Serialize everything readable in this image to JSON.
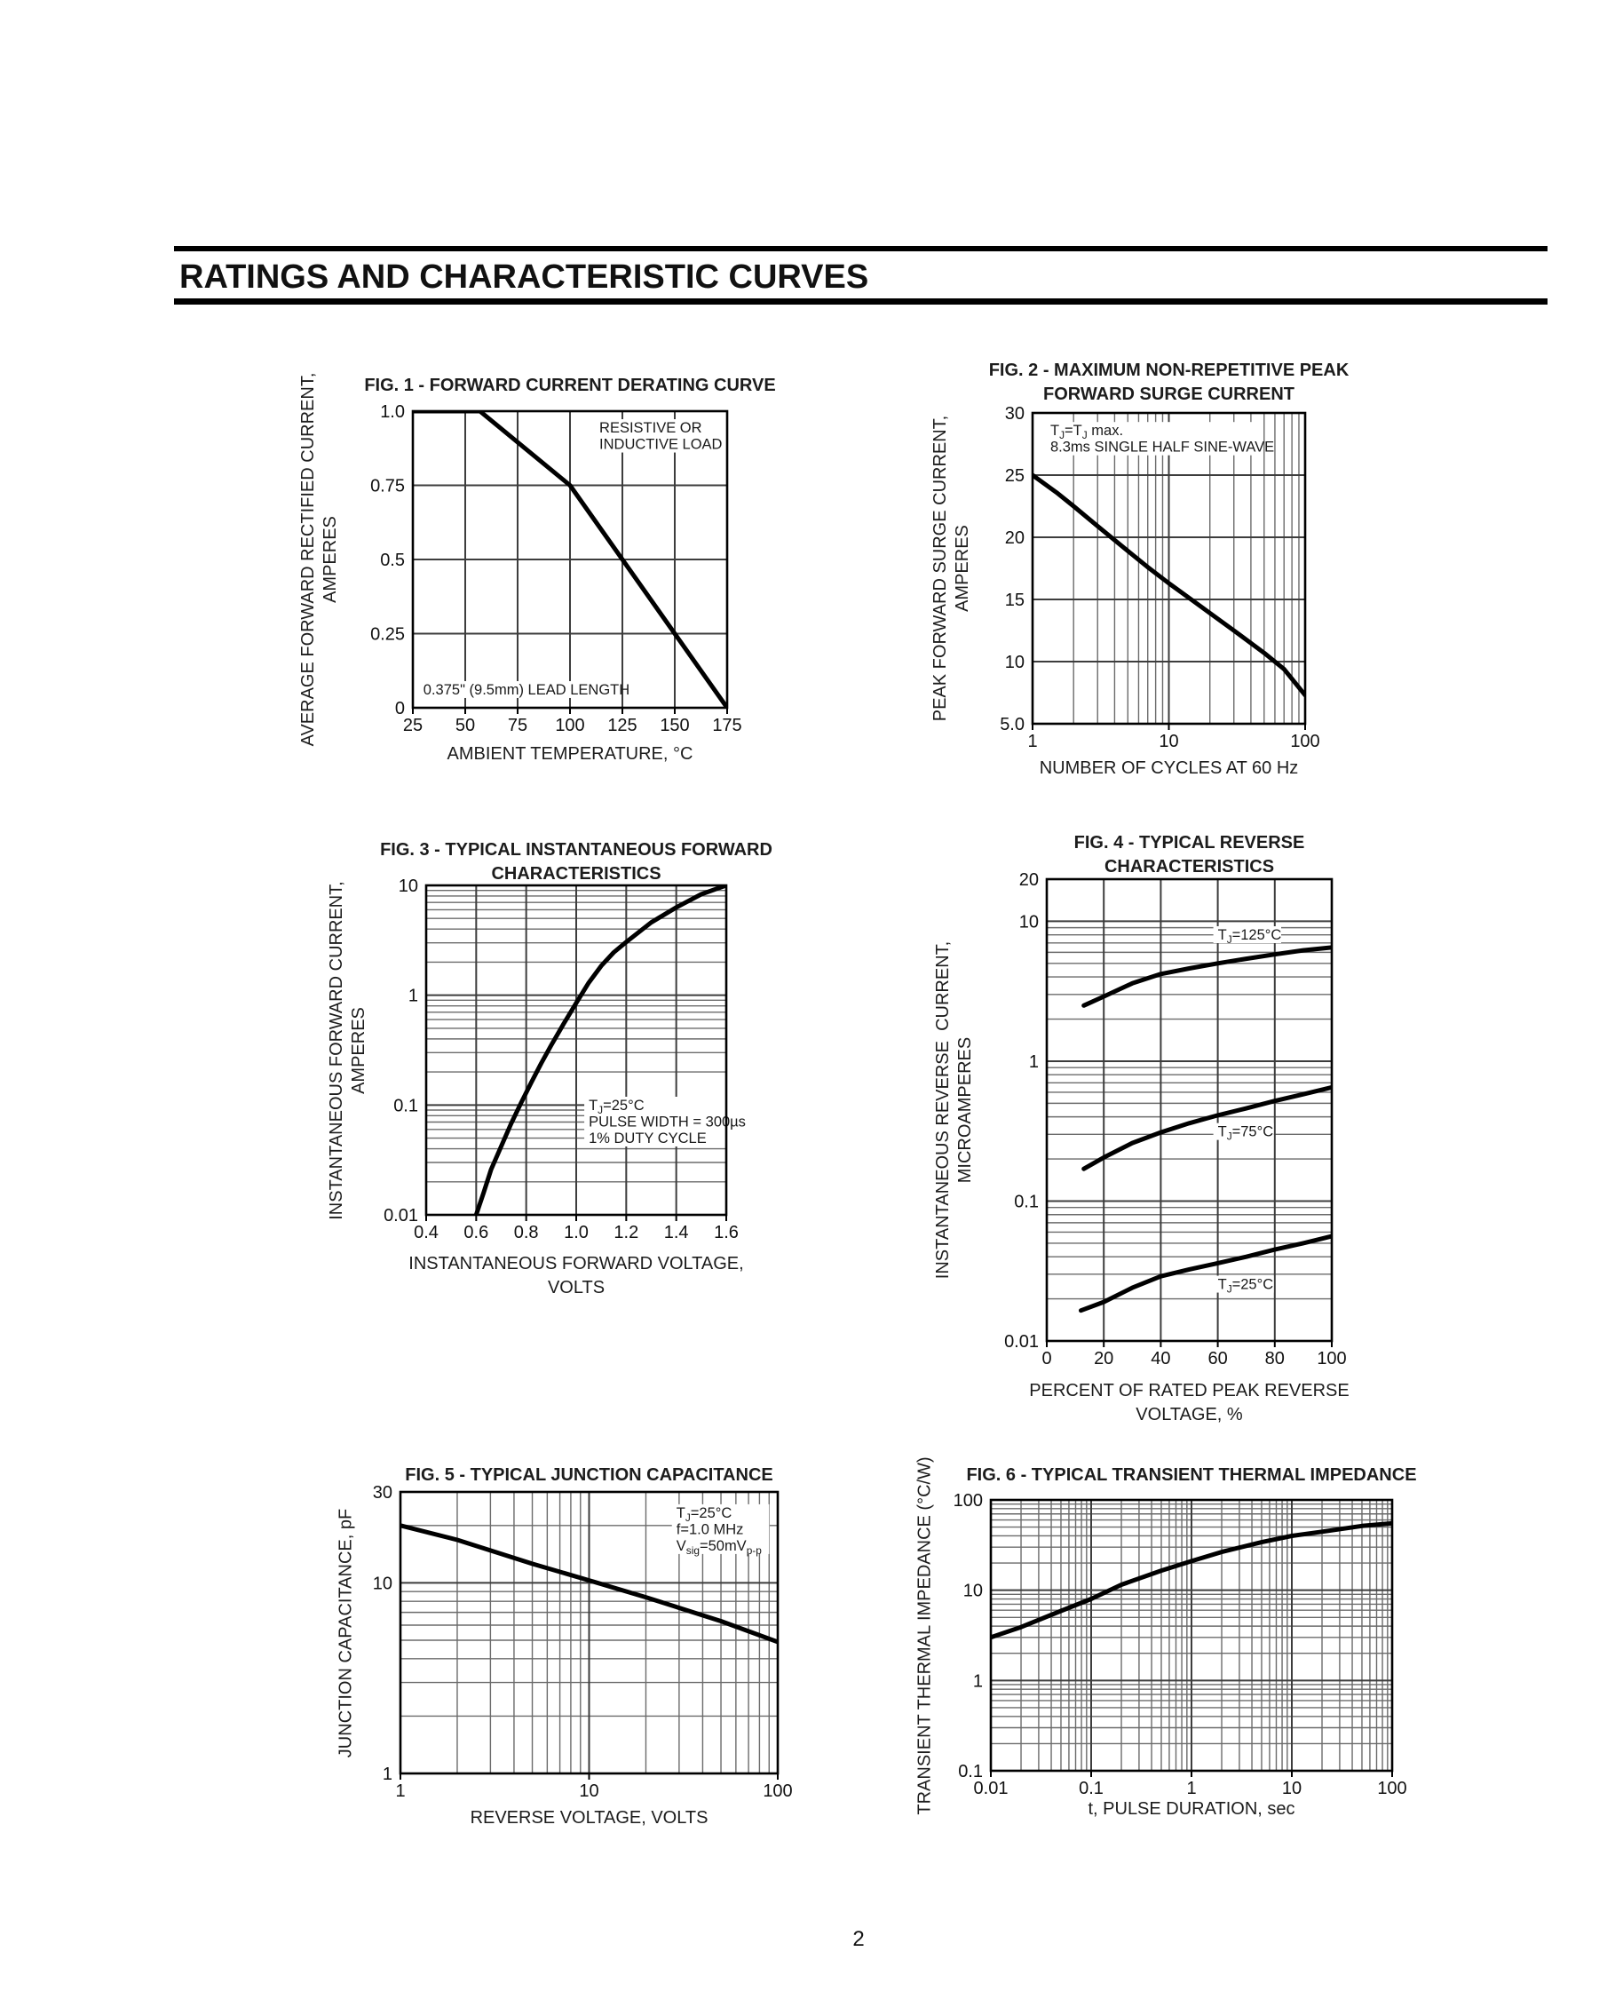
{
  "page": {
    "header_title": "RATINGS AND CHARACTERISTIC CURVES",
    "page_number": "2"
  },
  "chart_data": [
    {
      "id": "fig1",
      "type": "line",
      "title1": "FIG. 1 - FORWARD CURRENT DERATING CURVE",
      "xlabel1": "AMBIENT TEMPERATURE, °C",
      "ylabel1": "AVERAGE FORWARD RECTIFIED CURRENT,",
      "ylabel2": "AMPERES",
      "xscale": "linear",
      "yscale": "linear",
      "xlim": [
        25,
        175
      ],
      "ylim": [
        0,
        1
      ],
      "xticks": [
        {
          "v": 25,
          "label": "25"
        },
        {
          "v": 50,
          "label": "50"
        },
        {
          "v": 75,
          "label": "75"
        },
        {
          "v": 100,
          "label": "100"
        },
        {
          "v": 125,
          "label": "125"
        },
        {
          "v": 150,
          "label": "150"
        },
        {
          "v": 175,
          "label": "175"
        }
      ],
      "yticks": [
        {
          "v": 1,
          "label": "1.0"
        },
        {
          "v": 0.75,
          "label": "0.75"
        },
        {
          "v": 0.5,
          "label": "0.5"
        },
        {
          "v": 0.25,
          "label": "0.25"
        },
        {
          "v": 0,
          "label": "0"
        }
      ],
      "series": [
        {
          "name": "forward-current-derating",
          "points": [
            [
              25,
              1
            ],
            [
              57,
              1
            ],
            [
              100,
              0.75
            ],
            [
              175,
              0
            ]
          ]
        }
      ],
      "annotations": [
        {
          "x": 114,
          "y": 0.928,
          "lines": [
            "RESISTIVE OR",
            "INDUCTIVE LOAD"
          ]
        },
        {
          "x": 30,
          "y": 0.045,
          "lines": [
            "0.375\" (9.5mm) LEAD LENGTH"
          ]
        }
      ]
    },
    {
      "id": "fig2",
      "type": "line",
      "title1": "FIG. 2 - MAXIMUM NON-REPETITIVE PEAK",
      "title2": "FORWARD SURGE CURRENT",
      "xlabel1": "NUMBER OF CYCLES AT 60 Hz",
      "ylabel1": "PEAK FORWARD SURGE CURRENT,",
      "ylabel2": "AMPERES",
      "xscale": "log",
      "yscale": "linear",
      "xlim": [
        1,
        100
      ],
      "ylim": [
        5,
        30
      ],
      "xticks": [
        {
          "v": 1,
          "label": "1"
        },
        {
          "v": 10,
          "label": "10"
        },
        {
          "v": 100,
          "label": "100"
        }
      ],
      "yticks": [
        {
          "v": 30,
          "label": "30"
        },
        {
          "v": 25,
          "label": "25"
        },
        {
          "v": 20,
          "label": "20"
        },
        {
          "v": 15,
          "label": "15"
        },
        {
          "v": 10,
          "label": "10"
        },
        {
          "v": 5,
          "label": "5.0"
        }
      ],
      "series": [
        {
          "name": "peak-surge-current",
          "points": [
            [
              1,
              25
            ],
            [
              1.5,
              23.6
            ],
            [
              2,
              22.5
            ],
            [
              3,
              20.9
            ],
            [
              5,
              18.9
            ],
            [
              7,
              17.6
            ],
            [
              10,
              16.3
            ],
            [
              15,
              14.9
            ],
            [
              20,
              13.9
            ],
            [
              30,
              12.5
            ],
            [
              50,
              10.7
            ],
            [
              70,
              9.4
            ],
            [
              100,
              7.3
            ]
          ]
        }
      ],
      "annotations": [
        {
          "x": 1.35,
          "y": 28.2,
          "lines": [
            "T{J}=T{J} max.",
            "8.3ms SINGLE HALF SINE-WAVE"
          ]
        }
      ]
    },
    {
      "id": "fig3",
      "type": "line",
      "title1": "FIG. 3 - TYPICAL INSTANTANEOUS FORWARD",
      "title2": "CHARACTERISTICS",
      "xlabel1": "INSTANTANEOUS FORWARD VOLTAGE,",
      "xlabel2": "VOLTS",
      "ylabel1": "INSTANTANEOUS FORWARD CURRENT,",
      "ylabel2": "AMPERES",
      "xscale": "linear",
      "yscale": "log",
      "xlim": [
        0.4,
        1.6
      ],
      "ylim": [
        0.01,
        10
      ],
      "xticks": [
        {
          "v": 0.4,
          "label": "0.4"
        },
        {
          "v": 0.6,
          "label": "0.6"
        },
        {
          "v": 0.8,
          "label": "0.8"
        },
        {
          "v": 1.0,
          "label": "1.0"
        },
        {
          "v": 1.2,
          "label": "1.2"
        },
        {
          "v": 1.4,
          "label": "1.4"
        },
        {
          "v": 1.6,
          "label": "1.6"
        }
      ],
      "yticks": [
        {
          "v": 10,
          "label": "10"
        },
        {
          "v": 1,
          "label": "1"
        },
        {
          "v": 0.1,
          "label": "0.1"
        },
        {
          "v": 0.01,
          "label": "0.01"
        }
      ],
      "series": [
        {
          "name": "instantaneous-forward",
          "points": [
            [
              0.6,
              0.01
            ],
            [
              0.63,
              0.016
            ],
            [
              0.66,
              0.026
            ],
            [
              0.7,
              0.042
            ],
            [
              0.74,
              0.068
            ],
            [
              0.78,
              0.105
            ],
            [
              0.82,
              0.16
            ],
            [
              0.86,
              0.24
            ],
            [
              0.9,
              0.35
            ],
            [
              0.95,
              0.55
            ],
            [
              1.0,
              0.85
            ],
            [
              1.05,
              1.3
            ],
            [
              1.1,
              1.85
            ],
            [
              1.15,
              2.45
            ],
            [
              1.2,
              3.05
            ],
            [
              1.3,
              4.6
            ],
            [
              1.4,
              6.3
            ],
            [
              1.5,
              8.3
            ],
            [
              1.6,
              10
            ]
          ]
        }
      ],
      "annotations": [
        {
          "x": 1.05,
          "y": 0.09,
          "lines": [
            "T{J}=25°C",
            "PULSE WIDTH = 300µs",
            "1% DUTY CYCLE"
          ]
        }
      ]
    },
    {
      "id": "fig4",
      "type": "line",
      "title1": "FIG. 4 - TYPICAL REVERSE",
      "title2": "CHARACTERISTICS",
      "xlabel1": "PERCENT OF RATED PEAK REVERSE",
      "xlabel2": "VOLTAGE, %",
      "ylabel1": "INSTANTANEOUS REVERSE  CURRENT,",
      "ylabel2": "MICROAMPERES",
      "xscale": "linear",
      "yscale": "log",
      "xlim": [
        0,
        100
      ],
      "ylim": [
        0.01,
        20
      ],
      "xticks": [
        {
          "v": 0,
          "label": "0"
        },
        {
          "v": 20,
          "label": "20"
        },
        {
          "v": 40,
          "label": "40"
        },
        {
          "v": 60,
          "label": "60"
        },
        {
          "v": 80,
          "label": "80"
        },
        {
          "v": 100,
          "label": "100"
        }
      ],
      "yticks": [
        {
          "v": 20,
          "label": "20"
        },
        {
          "v": 10,
          "label": "10"
        },
        {
          "v": 1,
          "label": "1"
        },
        {
          "v": 0.1,
          "label": "0.1"
        },
        {
          "v": 0.01,
          "label": "0.01"
        }
      ],
      "series": [
        {
          "name": "tj-125c",
          "points": [
            [
              13,
              2.5
            ],
            [
              20,
              2.9
            ],
            [
              30,
              3.6
            ],
            [
              40,
              4.2
            ],
            [
              50,
              4.6
            ],
            [
              60,
              5.0
            ],
            [
              70,
              5.4
            ],
            [
              80,
              5.8
            ],
            [
              90,
              6.2
            ],
            [
              100,
              6.5
            ]
          ]
        },
        {
          "name": "tj-75c",
          "points": [
            [
              13,
              0.17
            ],
            [
              20,
              0.205
            ],
            [
              30,
              0.26
            ],
            [
              40,
              0.31
            ],
            [
              50,
              0.36
            ],
            [
              60,
              0.41
            ],
            [
              70,
              0.46
            ],
            [
              80,
              0.52
            ],
            [
              90,
              0.58
            ],
            [
              100,
              0.65
            ]
          ]
        },
        {
          "name": "tj-25c",
          "points": [
            [
              12,
              0.0165
            ],
            [
              20,
              0.019
            ],
            [
              30,
              0.024
            ],
            [
              40,
              0.029
            ],
            [
              50,
              0.0325
            ],
            [
              60,
              0.036
            ],
            [
              70,
              0.04
            ],
            [
              80,
              0.045
            ],
            [
              90,
              0.05
            ],
            [
              100,
              0.056
            ]
          ]
        }
      ],
      "annotations": [
        {
          "x": 60,
          "y": 7.4,
          "lines": [
            "T{J}=125°C"
          ]
        },
        {
          "x": 60,
          "y": 0.29,
          "lines": [
            "T{J}=75°C"
          ]
        },
        {
          "x": 60,
          "y": 0.0235,
          "lines": [
            "T{J}=25°C"
          ]
        }
      ]
    },
    {
      "id": "fig5",
      "type": "line",
      "title1": "FIG. 5 - TYPICAL JUNCTION CAPACITANCE",
      "xlabel1": "REVERSE VOLTAGE, VOLTS",
      "ylabel1": "JUNCTION CAPACITANCE, pF",
      "xscale": "log",
      "yscale": "log",
      "xlim": [
        1,
        100
      ],
      "ylim": [
        1,
        30
      ],
      "xticks": [
        {
          "v": 1,
          "label": "1"
        },
        {
          "v": 10,
          "label": "10"
        },
        {
          "v": 100,
          "label": "100"
        }
      ],
      "yticks": [
        {
          "v": 30,
          "label": "30"
        },
        {
          "v": 10,
          "label": "10"
        },
        {
          "v": 1,
          "label": "1"
        }
      ],
      "series": [
        {
          "name": "junction-capacitance",
          "points": [
            [
              1,
              20
            ],
            [
              2,
              16.8
            ],
            [
              5,
              12.6
            ],
            [
              10,
              10.3
            ],
            [
              20,
              8.4
            ],
            [
              50,
              6.3
            ],
            [
              100,
              4.9
            ]
          ]
        }
      ],
      "annotations": [
        {
          "x": 29,
          "y": 22,
          "lines": [
            "T{J}=25°C",
            "f=1.0 MHz",
            "V{sig}=50mV{p-p}"
          ]
        }
      ]
    },
    {
      "id": "fig6",
      "type": "line",
      "title1": "FIG. 6 - TYPICAL TRANSIENT THERMAL IMPEDANCE",
      "xlabel1": "t, PULSE DURATION, sec",
      "ylabel1": "TRANSIENT THERMAL IMPEDANCE (°C/W)",
      "xscale": "log",
      "yscale": "log",
      "xlim": [
        0.01,
        100
      ],
      "ylim": [
        0.1,
        100
      ],
      "xticks": [
        {
          "v": 0.01,
          "label": "0.01"
        },
        {
          "v": 0.1,
          "label": "0.1"
        },
        {
          "v": 1,
          "label": "1"
        },
        {
          "v": 10,
          "label": "10"
        },
        {
          "v": 100,
          "label": "100"
        }
      ],
      "yticks": [
        {
          "v": 100,
          "label": "100"
        },
        {
          "v": 10,
          "label": "10"
        },
        {
          "v": 1,
          "label": "1"
        },
        {
          "v": 0.1,
          "label": "0.1"
        }
      ],
      "series": [
        {
          "name": "transient-thermal-impedance",
          "points": [
            [
              0.01,
              3.0
            ],
            [
              0.02,
              3.9
            ],
            [
              0.05,
              5.9
            ],
            [
              0.1,
              8.0
            ],
            [
              0.2,
              11.5
            ],
            [
              0.5,
              16.5
            ],
            [
              1,
              21
            ],
            [
              2,
              26.5
            ],
            [
              5,
              34
            ],
            [
              10,
              40
            ],
            [
              20,
              44.5
            ],
            [
              50,
              51.5
            ],
            [
              100,
              55
            ]
          ]
        }
      ],
      "annotations": []
    }
  ]
}
